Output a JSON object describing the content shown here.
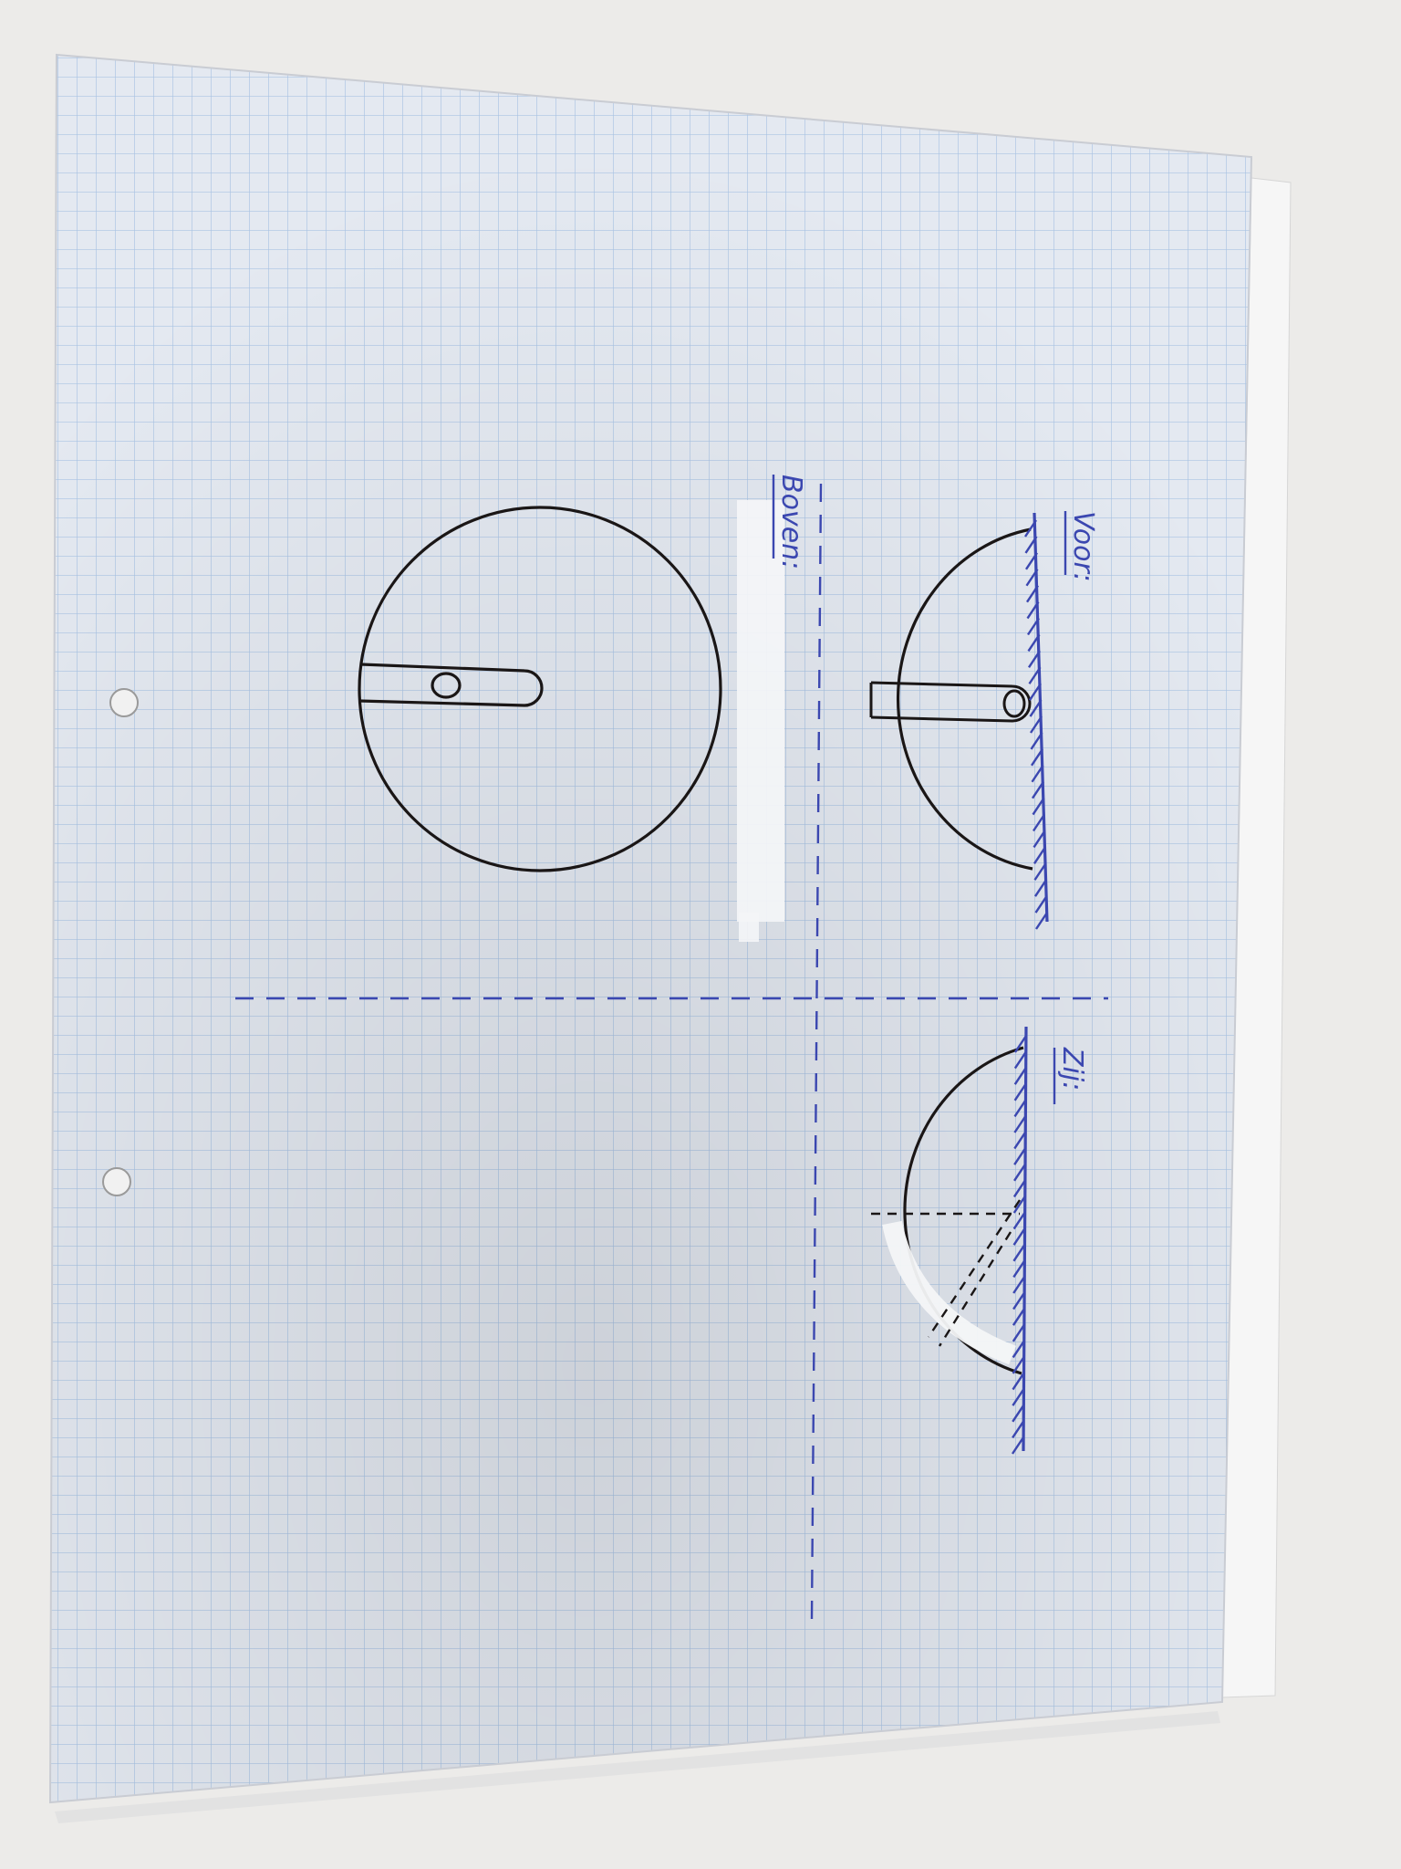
{
  "labels": {
    "front_view": "Voor:",
    "top_view": "Boven:",
    "side_view": "Zij:"
  },
  "colors": {
    "paper": "#e4e9f1",
    "grid_line": "#a9c3e3",
    "ink_black": "#1a1616",
    "ink_blue": "#3b47b0",
    "correction_tape": "#f4f5f7",
    "background": "#ecebe9"
  }
}
